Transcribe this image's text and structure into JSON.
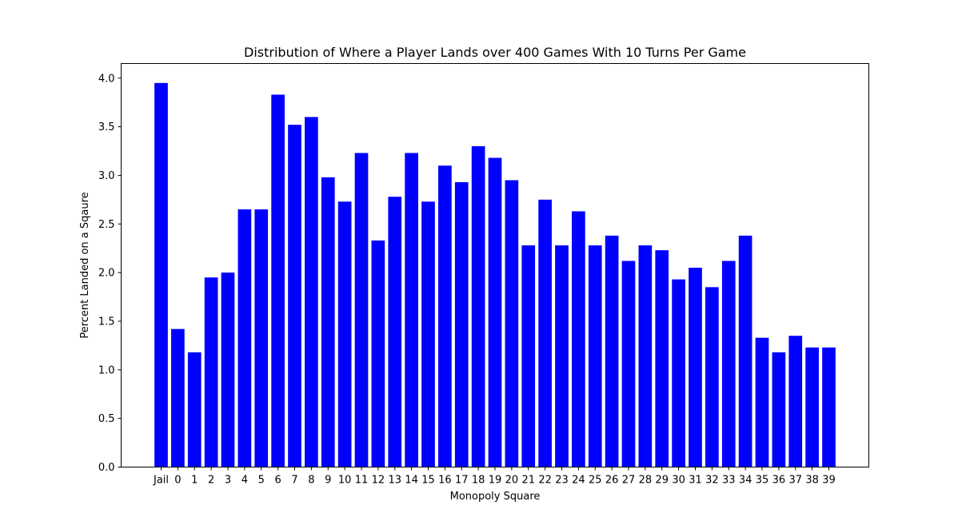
{
  "chart_data": {
    "type": "bar",
    "title": "Distribution of Where a Player Lands over 400 Games With 10 Turns Per Game",
    "xlabel": "Monopoly Square",
    "ylabel": "Percent Landed on a Sqaure",
    "categories": [
      "Jail",
      "0",
      "1",
      "2",
      "3",
      "4",
      "5",
      "6",
      "7",
      "8",
      "9",
      "10",
      "11",
      "12",
      "13",
      "14",
      "15",
      "16",
      "17",
      "18",
      "19",
      "20",
      "21",
      "22",
      "23",
      "24",
      "25",
      "26",
      "27",
      "28",
      "29",
      "30",
      "31",
      "32",
      "33",
      "34",
      "35",
      "36",
      "37",
      "38",
      "39"
    ],
    "values": [
      3.95,
      1.42,
      1.18,
      1.95,
      2.0,
      2.65,
      2.65,
      3.83,
      3.52,
      3.6,
      2.98,
      2.73,
      3.23,
      2.33,
      2.78,
      3.23,
      2.73,
      3.1,
      2.93,
      3.3,
      3.18,
      2.95,
      2.28,
      2.75,
      2.28,
      2.63,
      2.28,
      2.38,
      2.12,
      2.28,
      2.23,
      1.93,
      2.05,
      1.85,
      2.12,
      2.38,
      1.33,
      1.18,
      1.35,
      1.23,
      1.23
    ],
    "ylim": [
      0,
      4.15
    ],
    "yticks": [
      "0.0",
      "0.5",
      "1.0",
      "1.5",
      "2.0",
      "2.5",
      "3.0",
      "3.5",
      "4.0"
    ],
    "bar_color": "#0000ff",
    "grid": false,
    "legend": null
  }
}
